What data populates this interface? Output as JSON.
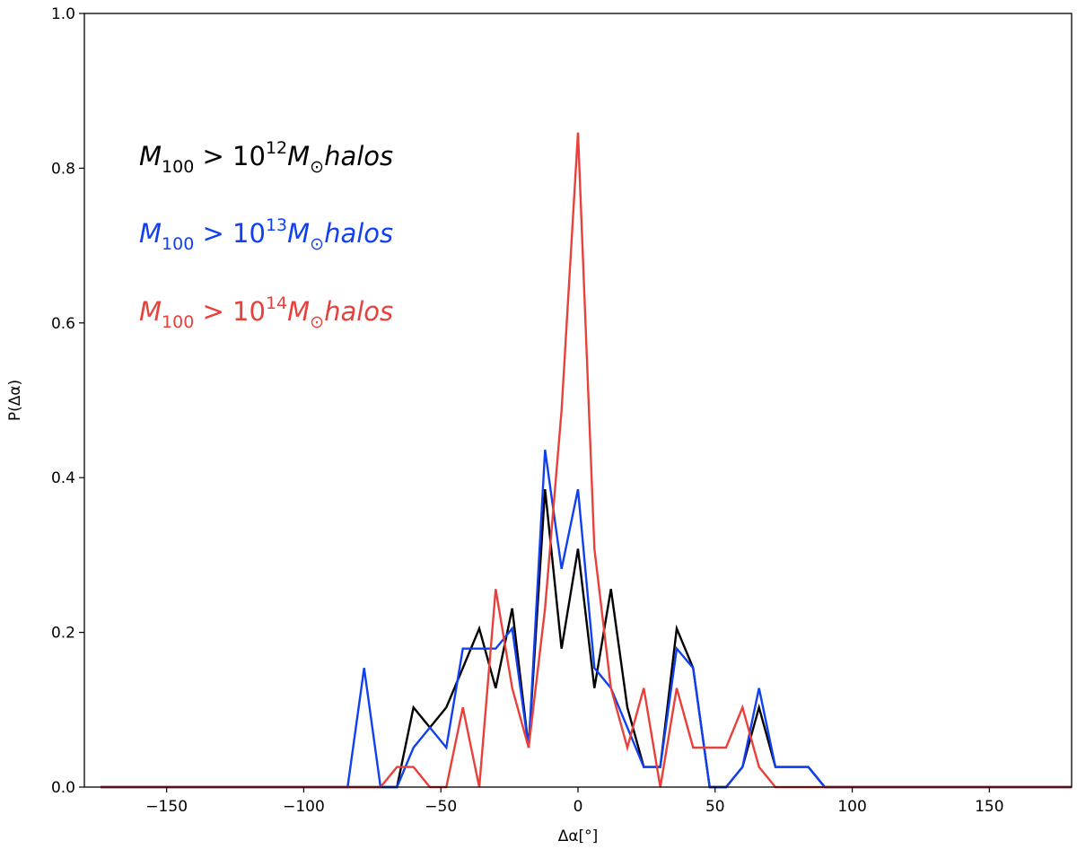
{
  "chart_data": {
    "type": "line",
    "title": "",
    "xlabel": "Δα[°]",
    "ylabel": "P(Δα)",
    "xlim": [
      -180,
      180
    ],
    "ylim": [
      0,
      1.0
    ],
    "x_ticks": [
      -150,
      -100,
      -50,
      0,
      50,
      100,
      150
    ],
    "x_tick_labels": [
      "−150",
      "−100",
      "−50",
      "0",
      "50",
      "100",
      "150"
    ],
    "y_ticks": [
      0,
      0.2,
      0.4,
      0.6,
      0.8,
      1.0
    ],
    "y_tick_labels": [
      "0.0",
      "0.2",
      "0.4",
      "0.6",
      "0.8",
      "1.0"
    ],
    "grid": false,
    "legend_position": "upper-left, text annotations",
    "x": [
      -174,
      -168,
      -162,
      -156,
      -150,
      -144,
      -138,
      -132,
      -126,
      -120,
      -114,
      -108,
      -102,
      -96,
      -90,
      -84,
      -78,
      -72,
      -66,
      -60,
      -54,
      -48,
      -42,
      -36,
      -30,
      -24,
      -18,
      -12,
      -6,
      0,
      6,
      12,
      18,
      24,
      30,
      36,
      42,
      48,
      54,
      60,
      66,
      72,
      78,
      84,
      90,
      96,
      102,
      108,
      114,
      120,
      126,
      132,
      138,
      144,
      150,
      156,
      162,
      168,
      174,
      180
    ],
    "series": [
      {
        "color": "#000000",
        "values": [
          0,
          0,
          0,
          0,
          0,
          0,
          0,
          0,
          0,
          0,
          0,
          0,
          0,
          0,
          0,
          0,
          0,
          0,
          0,
          0.103,
          0.077,
          0.103,
          0.154,
          0.205,
          0.128,
          0.231,
          0.051,
          0.385,
          0.179,
          0.308,
          0.128,
          0.256,
          0.103,
          0.026,
          0.026,
          0.205,
          0.154,
          0,
          0,
          0.026,
          0.103,
          0.026,
          0.026,
          0.026,
          0,
          0,
          0,
          0,
          0,
          0,
          0,
          0,
          0,
          0,
          0,
          0,
          0,
          0,
          0,
          0
        ]
      },
      {
        "color": "#1040f0",
        "values": [
          0,
          0,
          0,
          0,
          0,
          0,
          0,
          0,
          0,
          0,
          0,
          0,
          0,
          0,
          0,
          0,
          0.154,
          0,
          0,
          0.051,
          0.077,
          0.051,
          0.179,
          0.179,
          0.179,
          0.205,
          0.051,
          0.436,
          0.282,
          0.385,
          0.154,
          0.128,
          0.077,
          0.026,
          0.026,
          0.179,
          0.154,
          0,
          0,
          0.026,
          0.128,
          0.026,
          0.026,
          0.026,
          0,
          0,
          0,
          0,
          0,
          0,
          0,
          0,
          0,
          0,
          0,
          0,
          0,
          0,
          0,
          0
        ]
      },
      {
        "color": "#e8403a",
        "values": [
          0,
          0,
          0,
          0,
          0,
          0,
          0,
          0,
          0,
          0,
          0,
          0,
          0,
          0,
          0,
          0,
          0,
          0,
          0.026,
          0.026,
          0,
          0,
          0.103,
          0,
          0.256,
          0.128,
          0.051,
          0.231,
          0.487,
          0.846,
          0.308,
          0.128,
          0.051,
          0.128,
          0,
          0.128,
          0.051,
          0.051,
          0.051,
          0.103,
          0.026,
          0,
          0,
          0,
          0,
          0,
          0,
          0,
          0,
          0,
          0,
          0,
          0,
          0,
          0,
          0,
          0,
          0,
          0,
          0
        ]
      }
    ]
  },
  "legend": [
    {
      "base": "M",
      "sub": "100",
      "op": " > ",
      "num": "10",
      "exp": "12",
      "unit": "M",
      "unit_sub": "⊙",
      "suffix": "halos",
      "color": "#000000"
    },
    {
      "base": "M",
      "sub": "100",
      "op": " > ",
      "num": "10",
      "exp": "13",
      "unit": "M",
      "unit_sub": "⊙",
      "suffix": "halos",
      "color": "#1040f0"
    },
    {
      "base": "M",
      "sub": "100",
      "op": " > ",
      "num": "10",
      "exp": "14",
      "unit": "M",
      "unit_sub": "⊙",
      "suffix": "halos",
      "color": "#e8403a"
    }
  ]
}
